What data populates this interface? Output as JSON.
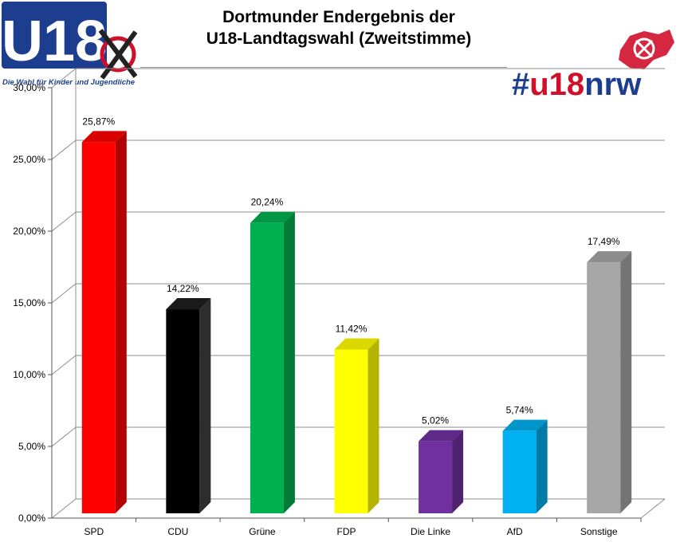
{
  "title": {
    "line1": "Dortmunder Endergebnis der",
    "line2": "U18-Landtagswahl (Zweitstimme)"
  },
  "logo_left": {
    "mark": "U18",
    "tagline": "Die Wahl für Kinder und Jugendliche",
    "colors": {
      "background": "#1d3e8f",
      "text": "#ffffff",
      "tagline": "#1d3e8f",
      "cross": "#222222",
      "circle": "#d0102b"
    }
  },
  "logo_right": {
    "text": "#u18nrw",
    "colors": {
      "hash": "#1d3e8f",
      "u18": "#d0102b",
      "nrw": "#1d3e8f",
      "map": "#d0102b"
    }
  },
  "chart_data": {
    "type": "bar",
    "title": "Dortmunder Endergebnis der U18-Landtagswahl (Zweitstimme)",
    "xlabel": "",
    "ylabel": "",
    "ylim": [
      0,
      30
    ],
    "ytick_values": [
      0,
      5,
      10,
      15,
      20,
      25,
      30
    ],
    "ytick_labels": [
      "0,00%",
      "5,00%",
      "10,00%",
      "15,00%",
      "20,00%",
      "25,00%",
      "30,00%"
    ],
    "grid": true,
    "legend": "none",
    "categories": [
      "SPD",
      "CDU",
      "Grüne",
      "FDP",
      "Die Linke",
      "AfD",
      "Sonstige"
    ],
    "values": [
      25.87,
      14.22,
      20.24,
      11.42,
      5.02,
      5.74,
      17.49
    ],
    "value_labels": [
      "25,87%",
      "14,22%",
      "20,24%",
      "11,42%",
      "5,02%",
      "5,74%",
      "17,49%"
    ],
    "colors": [
      "#ff0000",
      "#000000",
      "#00b050",
      "#ffff00",
      "#7030a0",
      "#00b0f0",
      "#a6a6a6"
    ]
  }
}
